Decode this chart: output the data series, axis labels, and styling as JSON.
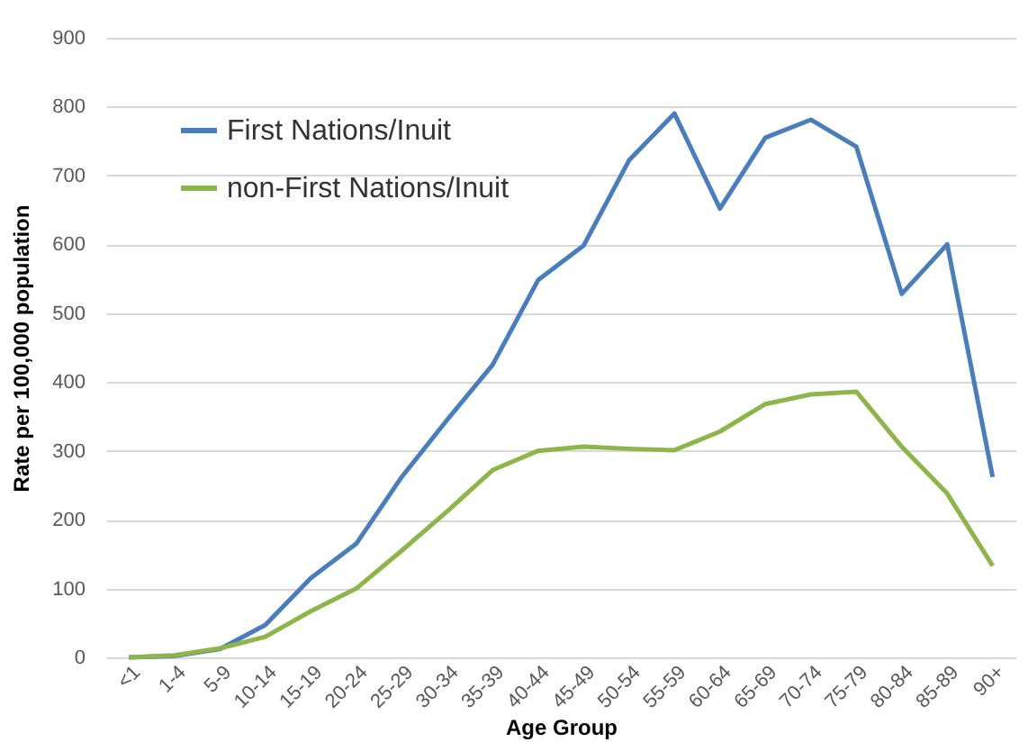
{
  "chart_data": {
    "type": "line",
    "xlabel": "Age Group",
    "ylabel": "Rate per 100,000 population",
    "categories": [
      "<1",
      "1-4",
      "5-9",
      "10-14",
      "15-19",
      "20-24",
      "25-29",
      "30-34",
      "35-39",
      "40-44",
      "45-49",
      "50-54",
      "55-59",
      "60-64",
      "65-69",
      "70-74",
      "75-79",
      "80-84",
      "85-89",
      "90+"
    ],
    "series": [
      {
        "name": "First Nations/Inuit",
        "color": "#4a7ebb",
        "values": [
          0,
          2,
          12,
          47,
          115,
          165,
          262,
          345,
          425,
          548,
          598,
          722,
          790,
          652,
          755,
          781,
          742,
          528,
          600,
          262
        ]
      },
      {
        "name": "non-First Nations/Inuit",
        "color": "#8db54a",
        "values": [
          0,
          3,
          13,
          30,
          67,
          100,
          155,
          212,
          272,
          300,
          306,
          303,
          301,
          328,
          368,
          382,
          386,
          306,
          238,
          133
        ]
      }
    ],
    "ylim": [
      0,
      900
    ],
    "yticks": [
      0,
      100,
      200,
      300,
      400,
      500,
      600,
      700,
      800,
      900
    ],
    "grid": "y",
    "legend": "top left",
    "marker": "none",
    "line_style": "solid"
  }
}
